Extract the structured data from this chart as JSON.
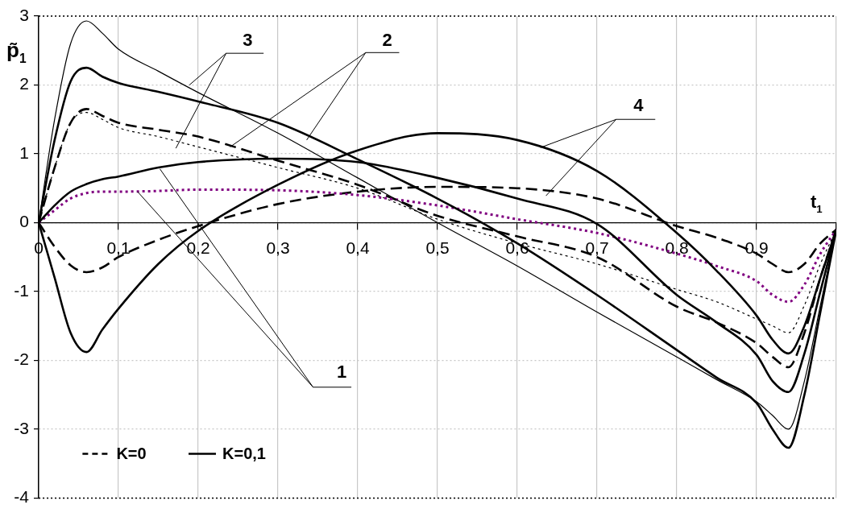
{
  "chart_data": {
    "type": "line",
    "xlabel": "t$_{1}$",
    "ylabel": "p̃$_{1}$",
    "x": [
      0,
      0.02,
      0.04,
      0.06,
      0.08,
      0.1,
      0.15,
      0.2,
      0.3,
      0.4,
      0.5,
      0.6,
      0.7,
      0.8,
      0.85,
      0.9,
      0.92,
      0.94,
      0.96,
      0.98,
      1
    ],
    "series": [
      {
        "color": "#000000",
        "line_style": "solid",
        "values": [
          0,
          1.5,
          2.6,
          2.93,
          2.75,
          2.52,
          2.2,
          1.89,
          1.3,
          0.65,
          0,
          -0.63,
          -1.3,
          -1.95,
          -2.28,
          -2.6,
          -2.8,
          -3.0,
          -2.3,
          -1.2,
          -0.1
        ]
      },
      {
        "color": "#000000",
        "line_style": "solid",
        "values": [
          0,
          1.2,
          2.05,
          2.25,
          2.12,
          2.03,
          1.9,
          1.76,
          1.45,
          0.92,
          0.35,
          -0.3,
          -1.05,
          -1.85,
          -2.25,
          -2.62,
          -3.0,
          -3.27,
          -2.5,
          -1.3,
          -0.1
        ]
      },
      {
        "name": "K=0,1",
        "color": "#000000",
        "line_style": "solid",
        "values": [
          0,
          0.25,
          0.45,
          0.56,
          0.63,
          0.67,
          0.8,
          0.88,
          0.93,
          0.88,
          0.65,
          0.35,
          -0.02,
          -1.05,
          -1.45,
          -1.92,
          -2.3,
          -2.46,
          -1.9,
          -1.0,
          -0.1
        ]
      },
      {
        "color": "#000000",
        "line_style": "solid",
        "values": [
          0,
          -0.8,
          -1.6,
          -1.88,
          -1.55,
          -1.25,
          -0.6,
          -0.12,
          0.55,
          1.05,
          1.3,
          1.2,
          0.75,
          -0.15,
          -0.7,
          -1.35,
          -1.7,
          -1.9,
          -1.5,
          -0.8,
          -0.1
        ]
      },
      {
        "color": "#800080",
        "line_style": "dotted",
        "values": [
          0,
          0.18,
          0.35,
          0.43,
          0.45,
          0.45,
          0.46,
          0.48,
          0.47,
          0.4,
          0.25,
          0.05,
          -0.15,
          -0.45,
          -0.63,
          -0.85,
          -1.05,
          -1.15,
          -0.9,
          -0.45,
          -0.1
        ]
      },
      {
        "color": "#000000",
        "line_style": "dashed",
        "values": [
          0,
          0.8,
          1.45,
          1.65,
          1.55,
          1.45,
          1.35,
          1.25,
          0.9,
          0.55,
          0.1,
          -0.2,
          -0.5,
          -1.22,
          -1.45,
          -1.75,
          -1.95,
          -2.1,
          -1.6,
          -0.8,
          -0.1
        ]
      },
      {
        "color": "#000000",
        "line_style": "dotted",
        "values": [
          0,
          0.8,
          1.45,
          1.6,
          1.5,
          1.38,
          1.25,
          1.1,
          0.8,
          0.5,
          0.05,
          -0.3,
          -0.6,
          -0.97,
          -1.15,
          -1.4,
          -1.5,
          -1.6,
          -1.2,
          -0.6,
          -0.1
        ]
      },
      {
        "name": "K=0",
        "color": "#000000",
        "line_style": "dashed",
        "values": [
          0,
          -0.35,
          -0.62,
          -0.72,
          -0.65,
          -0.5,
          -0.25,
          -0.05,
          0.27,
          0.45,
          0.52,
          0.5,
          0.35,
          -0.05,
          -0.22,
          -0.45,
          -0.6,
          -0.72,
          -0.6,
          -0.3,
          -0.1
        ]
      }
    ],
    "xlim": [
      0,
      1
    ],
    "xticks": [
      0,
      {
        "value": 0.1,
        "label": "0,1"
      },
      {
        "value": 0.2,
        "label": "0,2"
      },
      {
        "value": 0.3,
        "label": "0,3"
      },
      {
        "value": 0.4,
        "label": "0,4"
      },
      {
        "value": 0.5,
        "label": "0,5"
      },
      {
        "value": 0.6,
        "label": "0,6"
      },
      {
        "value": 0.7,
        "label": "0,7"
      },
      {
        "value": 0.8,
        "label": "0,8"
      },
      {
        "value": 0.9,
        "label": "0,9"
      },
      {
        "value": 1,
        "label": null
      }
    ],
    "ylim": [
      -4,
      3
    ],
    "yticks": [
      -4,
      -3,
      -2,
      -1,
      0,
      1,
      2,
      3
    ],
    "grid": true,
    "legend": "bottom left",
    "marker": "none",
    "annotations": [
      "1",
      {
        "text": "2",
        "x": 0.336,
        "y": 1.2
      },
      {
        "text": "3",
        "x": 0.189,
        "y": 2.0
      },
      {
        "text": "4",
        "x": 0.629,
        "y": 1.09
      }
    ]
  }
}
